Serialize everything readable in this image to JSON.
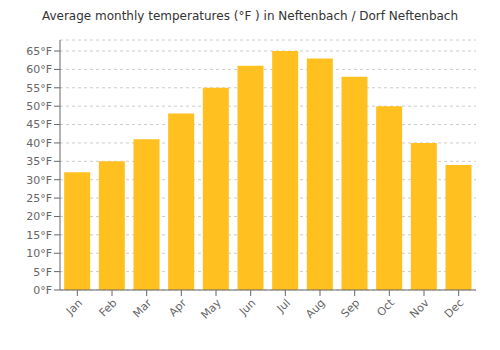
{
  "chart_data": {
    "type": "bar",
    "title": "Average monthly temperatures (°F ) in Neftenbach / Dorf Neftenbach",
    "categories": [
      "Jan",
      "Feb",
      "Mar",
      "Apr",
      "May",
      "Jun",
      "Jul",
      "Aug",
      "Sep",
      "Oct",
      "Nov",
      "Dec"
    ],
    "values": [
      32,
      35,
      41,
      48,
      55,
      61,
      65,
      63,
      58,
      50,
      40,
      34
    ],
    "color": "#FFC020",
    "ylim": [
      0,
      68
    ],
    "yticks": [
      {
        "value": 0,
        "label": "0°F"
      },
      {
        "value": 5,
        "label": "5°F"
      },
      {
        "value": 10,
        "label": "10°F"
      },
      {
        "value": 15,
        "label": "15°F"
      },
      {
        "value": 20,
        "label": "20°F"
      },
      {
        "value": 25,
        "label": "25°F"
      },
      {
        "value": 30,
        "label": "30°F"
      },
      {
        "value": 35,
        "label": "35°F"
      },
      {
        "value": 40,
        "label": "40°F"
      },
      {
        "value": 45,
        "label": "45°F"
      },
      {
        "value": 50,
        "label": "50°F"
      },
      {
        "value": 55,
        "label": "55°F"
      },
      {
        "value": 60,
        "label": "60°F"
      },
      {
        "value": 65,
        "label": "65°F"
      }
    ],
    "grid": true
  }
}
